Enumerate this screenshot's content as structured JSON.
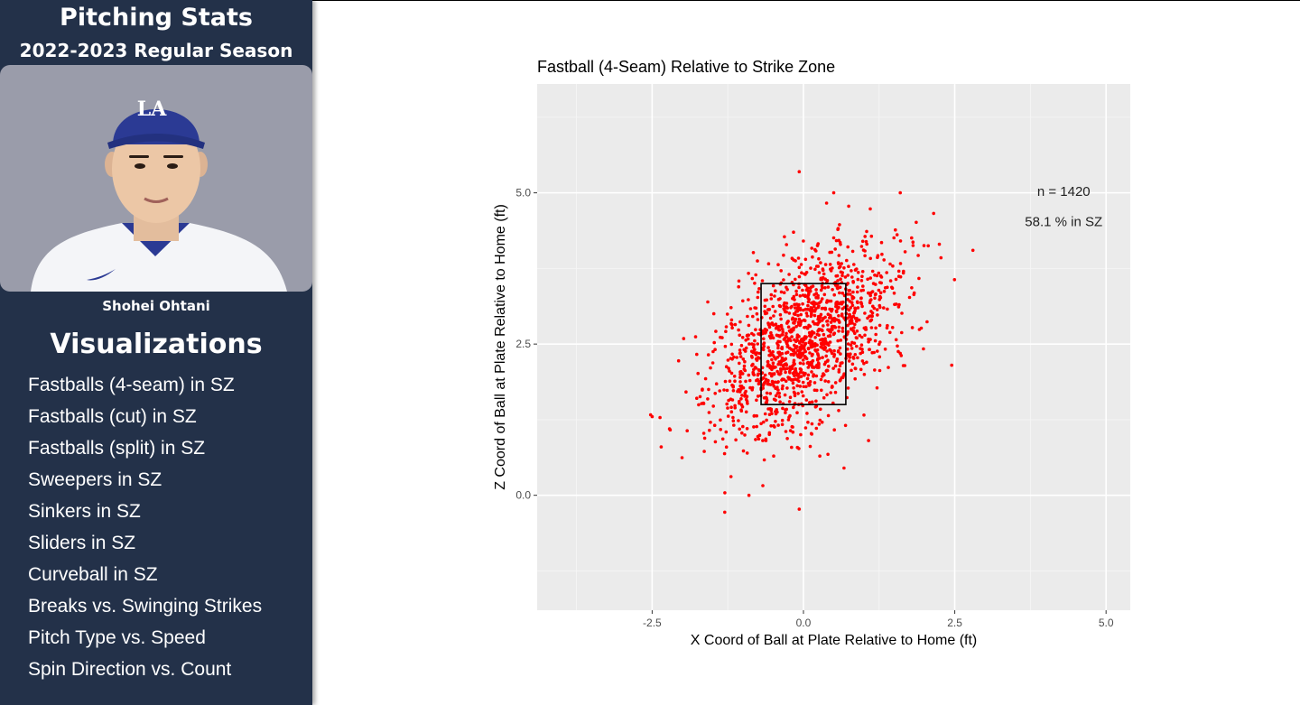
{
  "sidebar": {
    "title": "Pitching Stats",
    "subtitle": "2022-2023 Regular Season",
    "player_name": "Shohei Ohtani",
    "cap_logo": "LA",
    "section_title": "Visualizations",
    "items": [
      {
        "label": "Fastballs (4-seam) in SZ"
      },
      {
        "label": "Fastballs (cut) in SZ"
      },
      {
        "label": "Fastballs (split) in SZ"
      },
      {
        "label": "Sweepers in SZ"
      },
      {
        "label": "Sinkers in SZ"
      },
      {
        "label": "Sliders in SZ"
      },
      {
        "label": "Curveball in SZ"
      },
      {
        "label": "Breaks vs. Swinging Strikes"
      },
      {
        "label": "Pitch Type vs. Speed"
      },
      {
        "label": "Spin Direction vs. Count"
      }
    ],
    "colors": {
      "background": "#233149",
      "photo_bg": "#9a9caa",
      "cap": "#2b3a94"
    }
  },
  "chart_data": {
    "type": "scatter",
    "title": "Fastball (4-Seam) Relative to Strike Zone",
    "xlabel": "X Coord of Ball at Plate Relative to Home (ft)",
    "ylabel": "Z Coord of Ball at Plate Relative to Home (ft)",
    "xlim": [
      -4.4,
      5.4
    ],
    "ylim": [
      -1.9,
      6.8
    ],
    "x_ticks": [
      -2.5,
      0.0,
      2.5,
      5.0
    ],
    "x_tick_labels": [
      "-2.5",
      "0.0",
      "2.5",
      "5.0"
    ],
    "y_ticks": [
      0.0,
      2.5,
      5.0
    ],
    "y_tick_labels": [
      "0.0",
      "2.5",
      "5.0"
    ],
    "grid": true,
    "point_color": "#ff0000",
    "panel_color": "#ebebeb",
    "strike_zone": {
      "x": [
        -0.7,
        0.7
      ],
      "z": [
        1.5,
        3.5
      ]
    },
    "annotations": [
      "n = 1420",
      "58.1 % in SZ"
    ],
    "n": 1420,
    "pct_in_sz": 58.1,
    "notable_points": [
      {
        "x": -0.07,
        "y": 5.35
      },
      {
        "x": 0.5,
        "y": 5.0
      },
      {
        "x": 1.6,
        "y": 5.0
      },
      {
        "x": 2.8,
        "y": 4.05
      },
      {
        "x": 2.45,
        "y": 2.15
      },
      {
        "x": -2.5,
        "y": 1.3
      },
      {
        "x": -1.3,
        "y": -0.28
      },
      {
        "x": -0.07,
        "y": -0.23
      },
      {
        "x": -0.9,
        "y": 0.0
      },
      {
        "x": -2.35,
        "y": 0.8
      },
      {
        "x": 0.67,
        "y": 0.45
      }
    ]
  }
}
